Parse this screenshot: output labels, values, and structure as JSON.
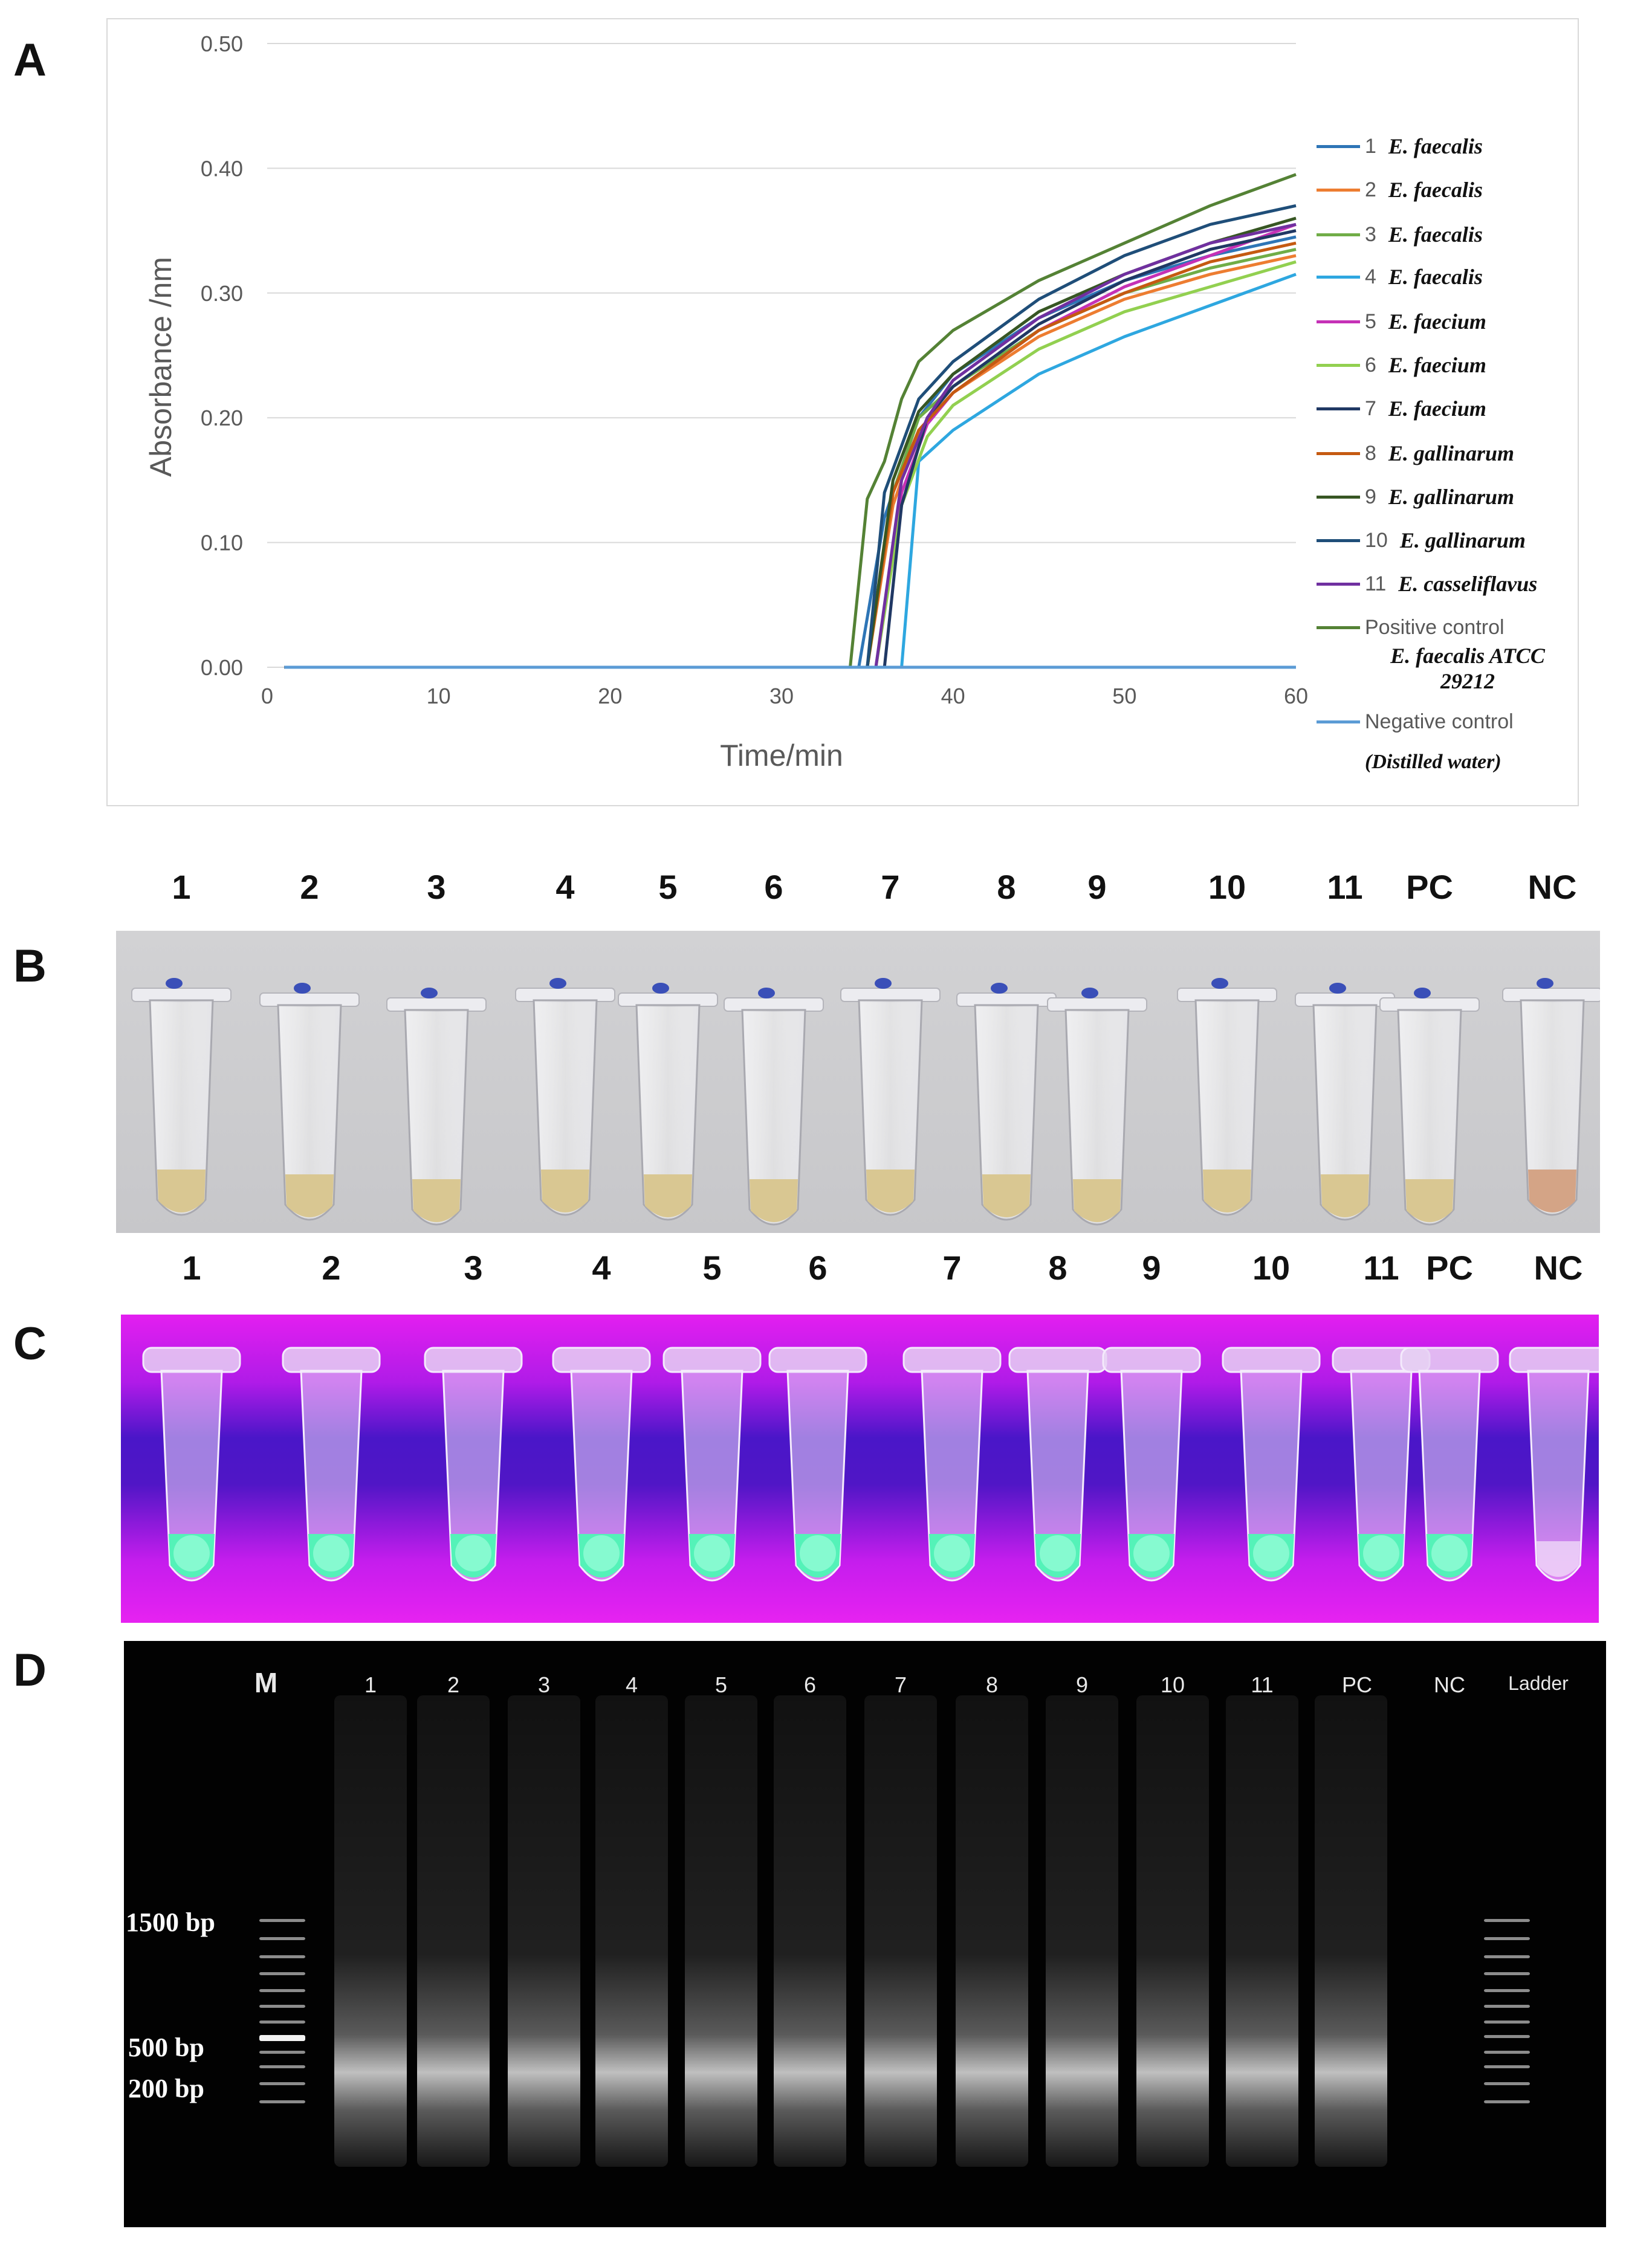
{
  "panels": {
    "a": "A",
    "b": "B",
    "c": "C",
    "d": "D"
  },
  "chart_data": {
    "type": "line",
    "title": "",
    "xlabel": "Time/min",
    "ylabel": "Absorbance /nm",
    "xlim": [
      0,
      60
    ],
    "ylim": [
      0,
      0.5
    ],
    "x_ticks": [
      "0",
      "10",
      "20",
      "30",
      "40",
      "50",
      "60"
    ],
    "y_ticks": [
      "0.00",
      "0.10",
      "0.20",
      "0.30",
      "0.40",
      "0.50"
    ],
    "grid": "horizontal",
    "legend_position": "right",
    "series": [
      {
        "num": "1",
        "name": "E. faecalis",
        "color": "#2e75b6",
        "x": [
          0,
          34.5,
          36,
          38,
          40,
          45,
          50,
          55,
          60
        ],
        "y": [
          0,
          0,
          0.12,
          0.2,
          0.235,
          0.28,
          0.31,
          0.33,
          0.345
        ]
      },
      {
        "num": "2",
        "name": "E. faecalis",
        "color": "#ed7d31",
        "x": [
          0,
          35,
          36.5,
          38,
          40,
          45,
          50,
          55,
          60
        ],
        "y": [
          0,
          0,
          0.13,
          0.19,
          0.22,
          0.265,
          0.295,
          0.315,
          0.33
        ]
      },
      {
        "num": "3",
        "name": "E. faecalis",
        "color": "#70ad47",
        "x": [
          0,
          35,
          36.5,
          38,
          40,
          45,
          50,
          55,
          60
        ],
        "y": [
          0,
          0,
          0.14,
          0.2,
          0.225,
          0.27,
          0.3,
          0.32,
          0.335
        ]
      },
      {
        "num": "4",
        "name": "E. faecalis",
        "color": "#2ea7e0",
        "x": [
          0,
          37,
          38,
          40,
          45,
          50,
          55,
          60
        ],
        "y": [
          0,
          0,
          0.165,
          0.19,
          0.235,
          0.265,
          0.29,
          0.315
        ]
      },
      {
        "num": "5",
        "name": "E. faecium",
        "color": "#c531b6",
        "x": [
          0,
          35.5,
          37,
          38.5,
          40,
          45,
          50,
          55,
          60
        ],
        "y": [
          0,
          0,
          0.14,
          0.195,
          0.22,
          0.27,
          0.305,
          0.33,
          0.355
        ]
      },
      {
        "num": "6",
        "name": "E. faecium",
        "color": "#92d050",
        "x": [
          0,
          35.5,
          37,
          38.5,
          40,
          45,
          50,
          55,
          60
        ],
        "y": [
          0,
          0,
          0.13,
          0.185,
          0.21,
          0.255,
          0.285,
          0.305,
          0.325
        ]
      },
      {
        "num": "7",
        "name": "E. faecium",
        "color": "#203864",
        "x": [
          0,
          36,
          37,
          38.5,
          40,
          45,
          50,
          55,
          60
        ],
        "y": [
          0,
          0,
          0.13,
          0.2,
          0.225,
          0.275,
          0.31,
          0.335,
          0.35
        ]
      },
      {
        "num": "8",
        "name": "E. gallinarum",
        "color": "#c55a11",
        "x": [
          0,
          35,
          36.5,
          38,
          40,
          45,
          50,
          55,
          60
        ],
        "y": [
          0,
          0,
          0.14,
          0.19,
          0.22,
          0.27,
          0.3,
          0.325,
          0.34
        ]
      },
      {
        "num": "9",
        "name": "E. gallinarum",
        "color": "#375623",
        "x": [
          0,
          35,
          36.5,
          38,
          40,
          45,
          50,
          55,
          60
        ],
        "y": [
          0,
          0,
          0.15,
          0.205,
          0.235,
          0.285,
          0.315,
          0.34,
          0.36
        ]
      },
      {
        "num": "10",
        "name": "E. gallinarum",
        "color": "#1f4e79",
        "x": [
          0,
          35,
          36,
          38,
          40,
          45,
          50,
          55,
          60
        ],
        "y": [
          0,
          0,
          0.14,
          0.215,
          0.245,
          0.295,
          0.33,
          0.355,
          0.37
        ]
      },
      {
        "num": "11",
        "name": "E. casseliflavus",
        "color": "#7030a0",
        "x": [
          0,
          35.5,
          37,
          38.5,
          40,
          45,
          50,
          55,
          60
        ],
        "y": [
          0,
          0,
          0.15,
          0.2,
          0.23,
          0.28,
          0.315,
          0.34,
          0.355
        ]
      },
      {
        "label": "Positive control",
        "sub": "E. faecalis ATCC 29212",
        "sub_line1": "E. faecalis ATCC",
        "sub_line2": "29212",
        "color": "#548235",
        "x": [
          0,
          34,
          35,
          36,
          37,
          38,
          40,
          45,
          50,
          55,
          60
        ],
        "y": [
          0,
          0,
          0.135,
          0.165,
          0.215,
          0.245,
          0.27,
          0.31,
          0.34,
          0.37,
          0.395
        ]
      },
      {
        "label": "Negative control",
        "sub": "(Distilled water)",
        "color": "#5b9bd5",
        "x": [
          0,
          60
        ],
        "y": [
          0,
          0
        ]
      }
    ]
  },
  "lane_labels": [
    "1",
    "2",
    "3",
    "4",
    "5",
    "6",
    "7",
    "8",
    "9",
    "10",
    "11",
    "PC",
    "NC"
  ],
  "gel": {
    "marker": "M",
    "lanes": [
      "1",
      "2",
      "3",
      "4",
      "5",
      "6",
      "7",
      "8",
      "9",
      "10",
      "11",
      "PC",
      "NC"
    ],
    "ladder": "Ladder",
    "bp": [
      "1500 bp",
      "500 bp",
      "200 bp"
    ]
  }
}
